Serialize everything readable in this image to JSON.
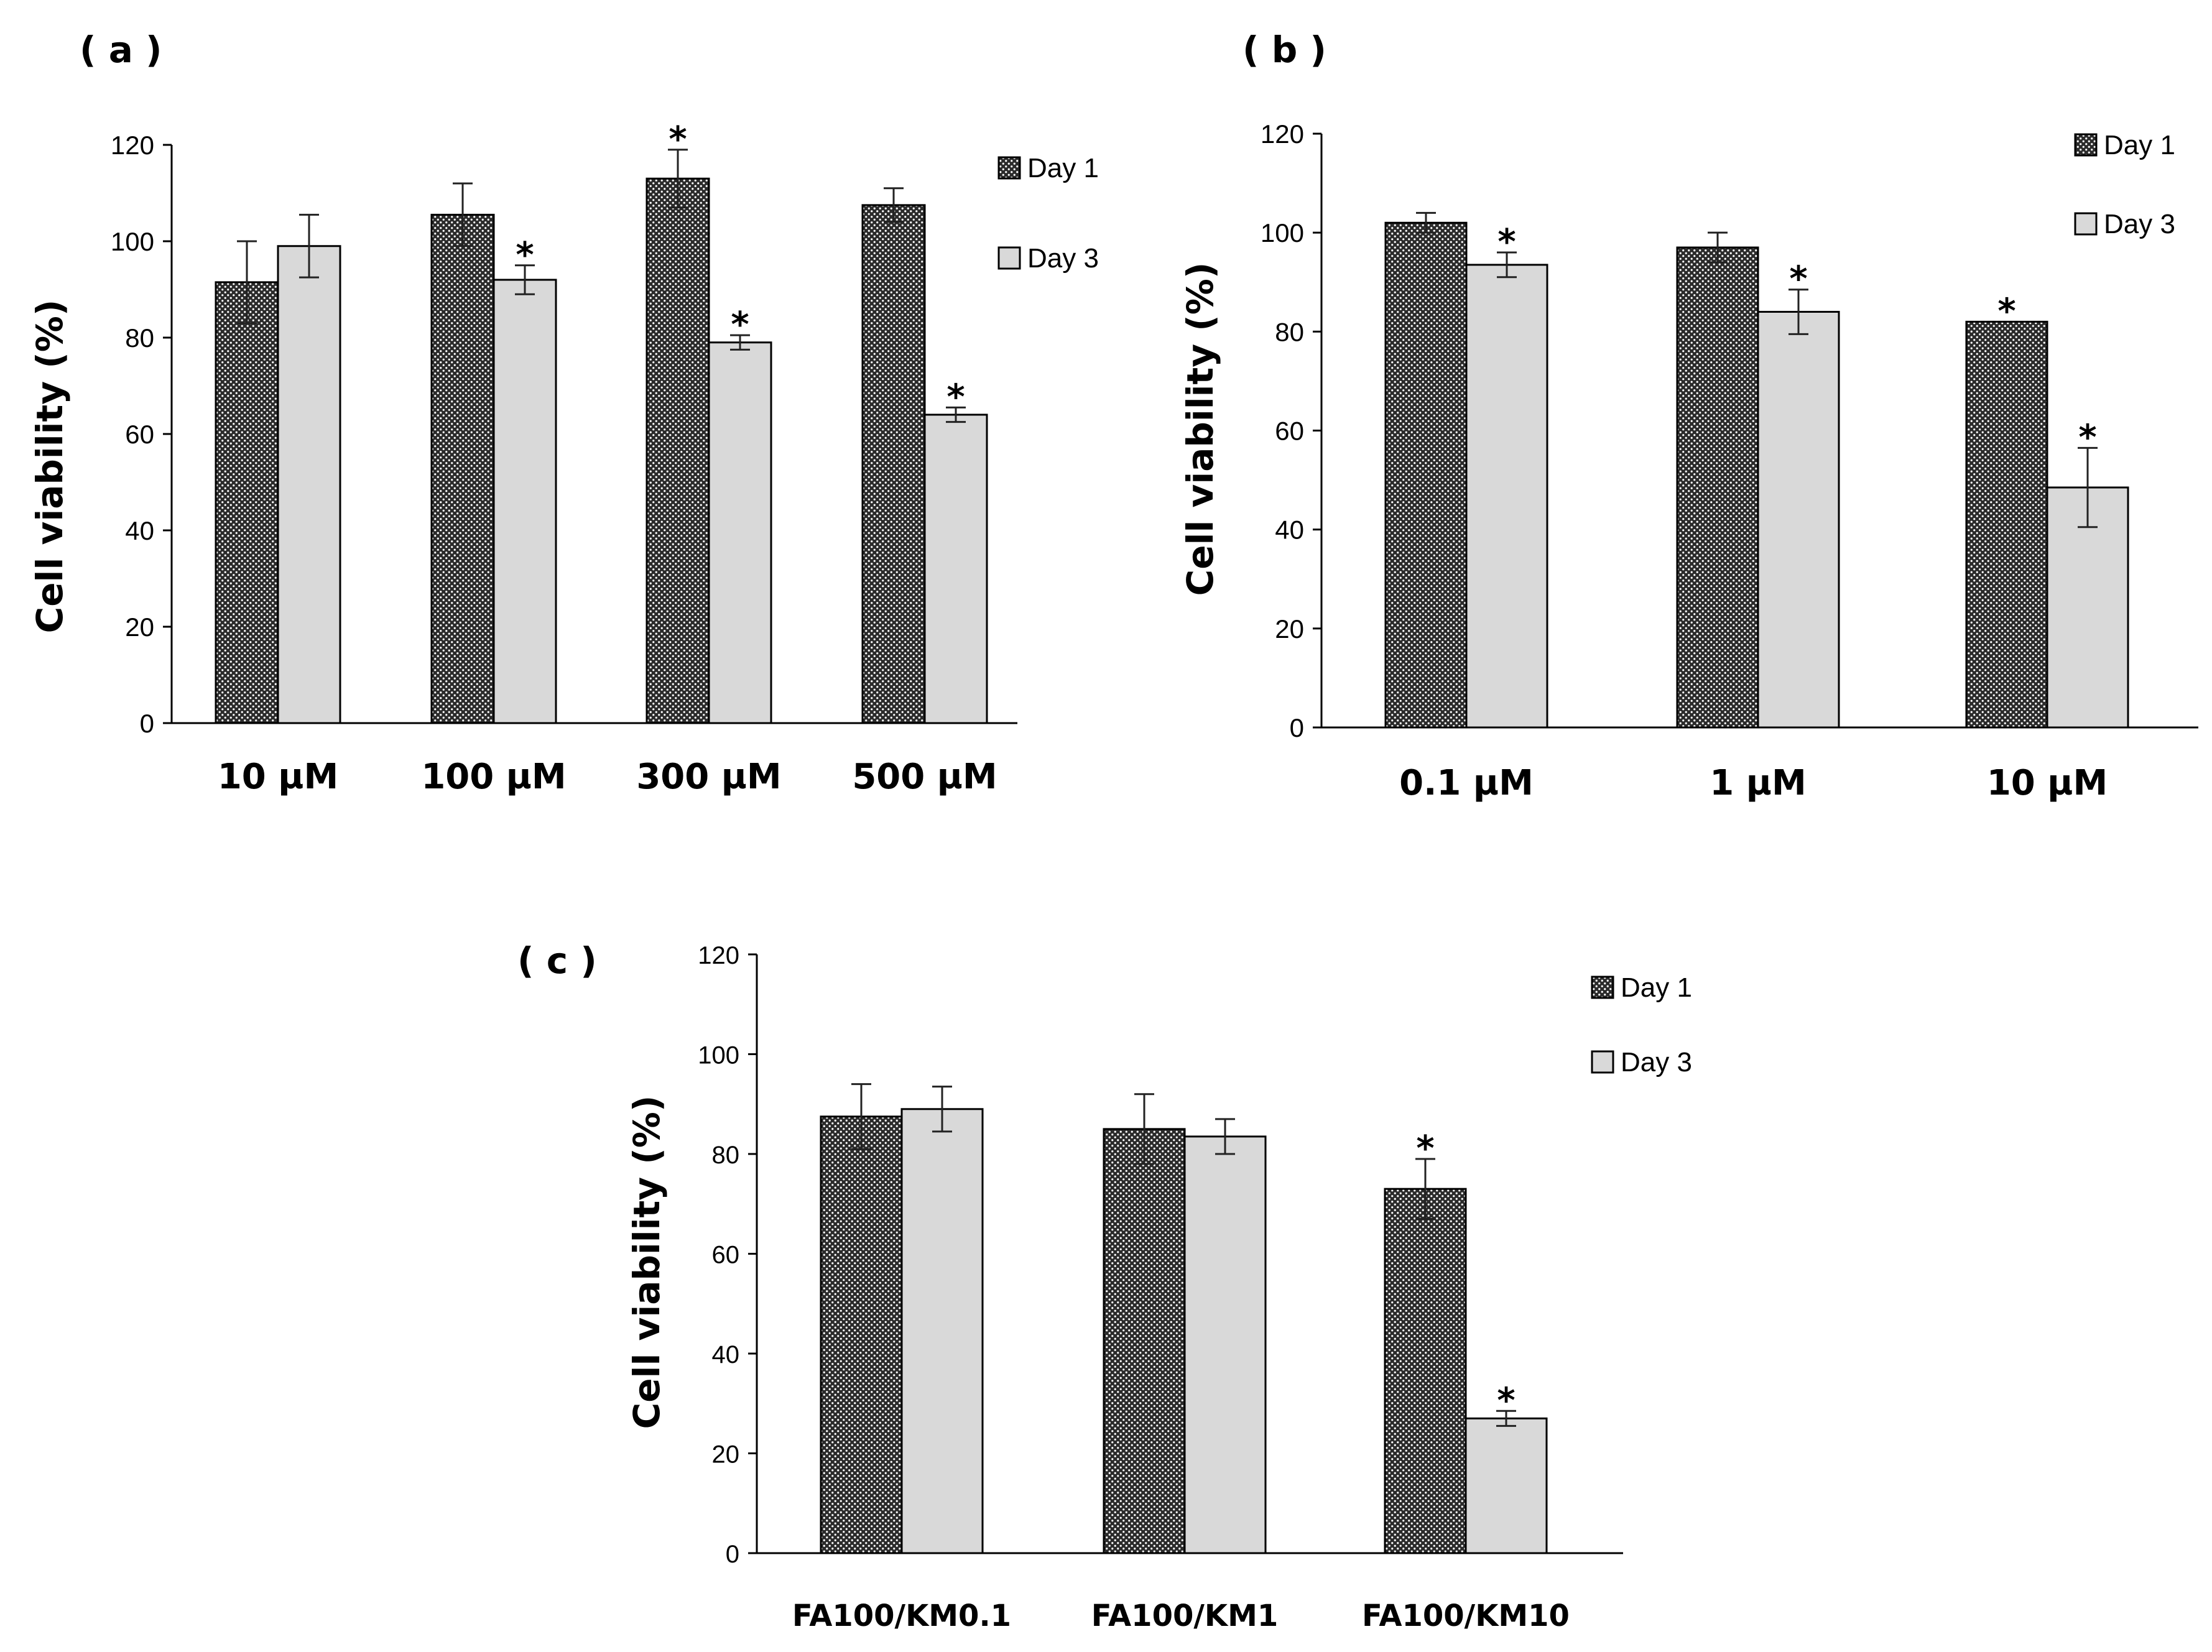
{
  "patterns": {
    "day1_fill": "#2b2b2b",
    "day1_dot": "#ffffff",
    "day3_fill": "#d9d9d9"
  },
  "chart_data": [
    {
      "type": "bar",
      "panel_label": "( a )",
      "ylabel": "Cell viability (%)",
      "xlabel": "",
      "ylim": [
        0,
        120
      ],
      "yticks": [
        "0",
        "20",
        "40",
        "60",
        "80",
        "100",
        "120"
      ],
      "categories": [
        "10 µM",
        "100 µM",
        "300 µM",
        "500 µM"
      ],
      "legend_placement": "top-right",
      "series": [
        {
          "name": "Day 1",
          "values": [
            91.5,
            105.5,
            113,
            107.5
          ],
          "errors": [
            8.5,
            6.5,
            6,
            3.5
          ],
          "significant": [
            false,
            false,
            true,
            false
          ]
        },
        {
          "name": "Day 3",
          "values": [
            99,
            92,
            79,
            64
          ],
          "errors": [
            6.5,
            3,
            1.5,
            1.5
          ],
          "significant": [
            false,
            true,
            true,
            true
          ]
        }
      ]
    },
    {
      "type": "bar",
      "panel_label": "( b )",
      "ylabel": "Cell viability (%)",
      "xlabel": "",
      "ylim": [
        0,
        120
      ],
      "yticks": [
        "0",
        "20",
        "40",
        "60",
        "80",
        "100",
        "120"
      ],
      "categories": [
        "0.1 µM",
        "1 µM",
        "10 µM"
      ],
      "legend_placement": "top-right",
      "series": [
        {
          "name": "Day 1",
          "values": [
            102,
            97,
            82
          ],
          "errors": [
            2,
            3,
            0
          ],
          "significant": [
            false,
            false,
            true
          ]
        },
        {
          "name": "Day 3",
          "values": [
            93.5,
            84,
            48.5
          ],
          "errors": [
            2.5,
            4.5,
            8
          ],
          "significant": [
            true,
            true,
            true
          ]
        }
      ]
    },
    {
      "type": "bar",
      "panel_label": "( c )",
      "ylabel": "Cell viability (%)",
      "xlabel": "",
      "ylim": [
        0,
        120
      ],
      "yticks": [
        "0",
        "20",
        "40",
        "60",
        "80",
        "100",
        "120"
      ],
      "categories": [
        "FA100/KM0.1",
        "FA100/KM1",
        "FA100/KM10"
      ],
      "legend_placement": "top-right",
      "series": [
        {
          "name": "Day 1",
          "values": [
            87.5,
            85,
            73
          ],
          "errors": [
            6.5,
            7,
            6
          ],
          "significant": [
            false,
            false,
            true
          ]
        },
        {
          "name": "Day 3",
          "values": [
            89,
            83.5,
            27
          ],
          "errors": [
            4.5,
            3.5,
            1.5
          ],
          "significant": [
            false,
            false,
            true
          ]
        }
      ]
    }
  ]
}
